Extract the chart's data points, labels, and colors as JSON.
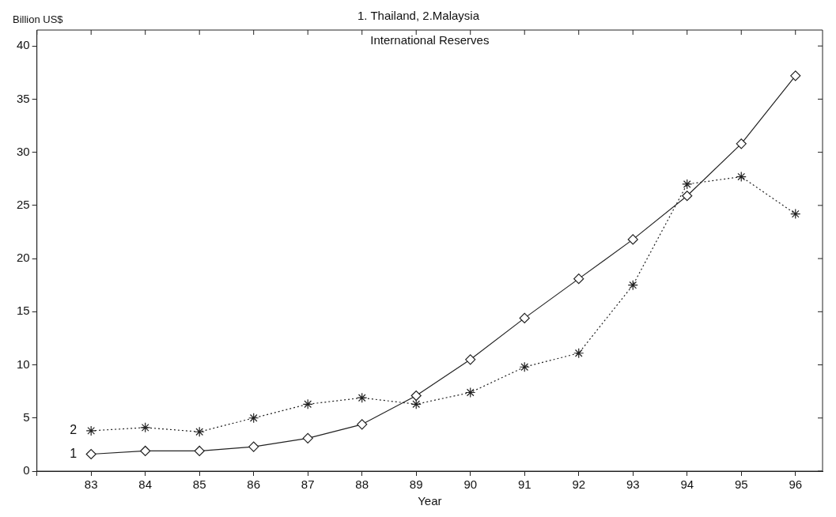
{
  "chart_data": {
    "type": "line",
    "title": "1. Thailand, 2.Malaysia",
    "subtitle": "International Reserves",
    "xlabel": "Year",
    "ylabel": "Billion US$",
    "x": [
      83,
      84,
      85,
      86,
      87,
      88,
      89,
      90,
      91,
      92,
      93,
      94,
      95,
      96
    ],
    "xlim": [
      82,
      96.5
    ],
    "xticks": [
      {
        "value": 82,
        "label": null
      },
      83,
      84,
      85,
      86,
      87,
      88,
      89,
      90,
      91,
      92,
      93,
      94,
      95,
      96
    ],
    "ylim": [
      0,
      41.5
    ],
    "yticks": [
      0,
      5,
      10,
      15,
      20,
      25,
      30,
      35,
      40
    ],
    "grid": false,
    "legend": false,
    "series": [
      {
        "name": "1",
        "color": "#222222",
        "marker": "diamond",
        "line_style": "solid",
        "values": [
          1.6,
          1.9,
          1.9,
          2.3,
          3.1,
          4.4,
          7.1,
          10.5,
          14.4,
          18.1,
          21.8,
          25.9,
          30.8,
          37.2
        ]
      },
      {
        "name": "2",
        "color": "#222222",
        "marker": "cross",
        "line_style": "dotted",
        "values": [
          3.8,
          4.1,
          3.7,
          5.0,
          6.3,
          6.9,
          6.3,
          7.4,
          9.8,
          11.1,
          17.5,
          27.0,
          27.7,
          24.2
        ]
      }
    ]
  }
}
